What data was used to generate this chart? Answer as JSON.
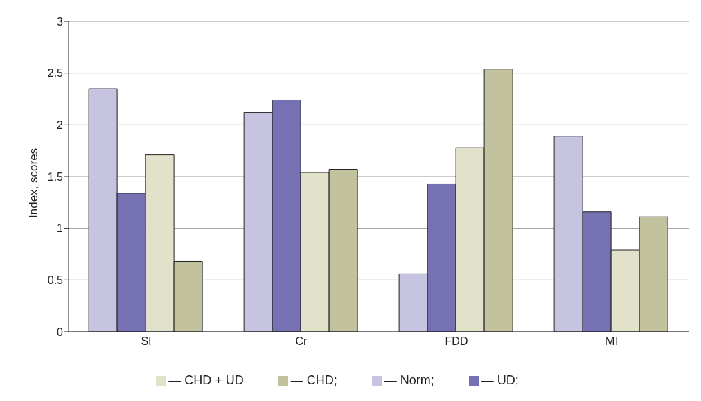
{
  "chart_data": {
    "type": "bar",
    "ylabel": "Index, scores",
    "categories": [
      "SI",
      "Cr",
      "FDD",
      "MI"
    ],
    "series": [
      {
        "name": "— Norm;",
        "color": "#c6c4e0",
        "values": [
          2.35,
          2.12,
          0.56,
          1.89
        ]
      },
      {
        "name": "— UD;",
        "color": "#7671b2",
        "values": [
          1.34,
          2.24,
          1.43,
          1.16
        ]
      },
      {
        "name": "— CHD + UD",
        "color": "#e2e2cb",
        "values": [
          1.71,
          1.54,
          1.78,
          0.79
        ]
      },
      {
        "name": "— CHD;",
        "color": "#c2c29e",
        "values": [
          0.68,
          1.57,
          2.54,
          1.11
        ]
      }
    ],
    "ylim": [
      0,
      3
    ],
    "yticks": [
      0,
      0.5,
      1,
      1.5,
      2,
      2.5,
      3
    ],
    "grid": "y",
    "legend": "bottom"
  }
}
